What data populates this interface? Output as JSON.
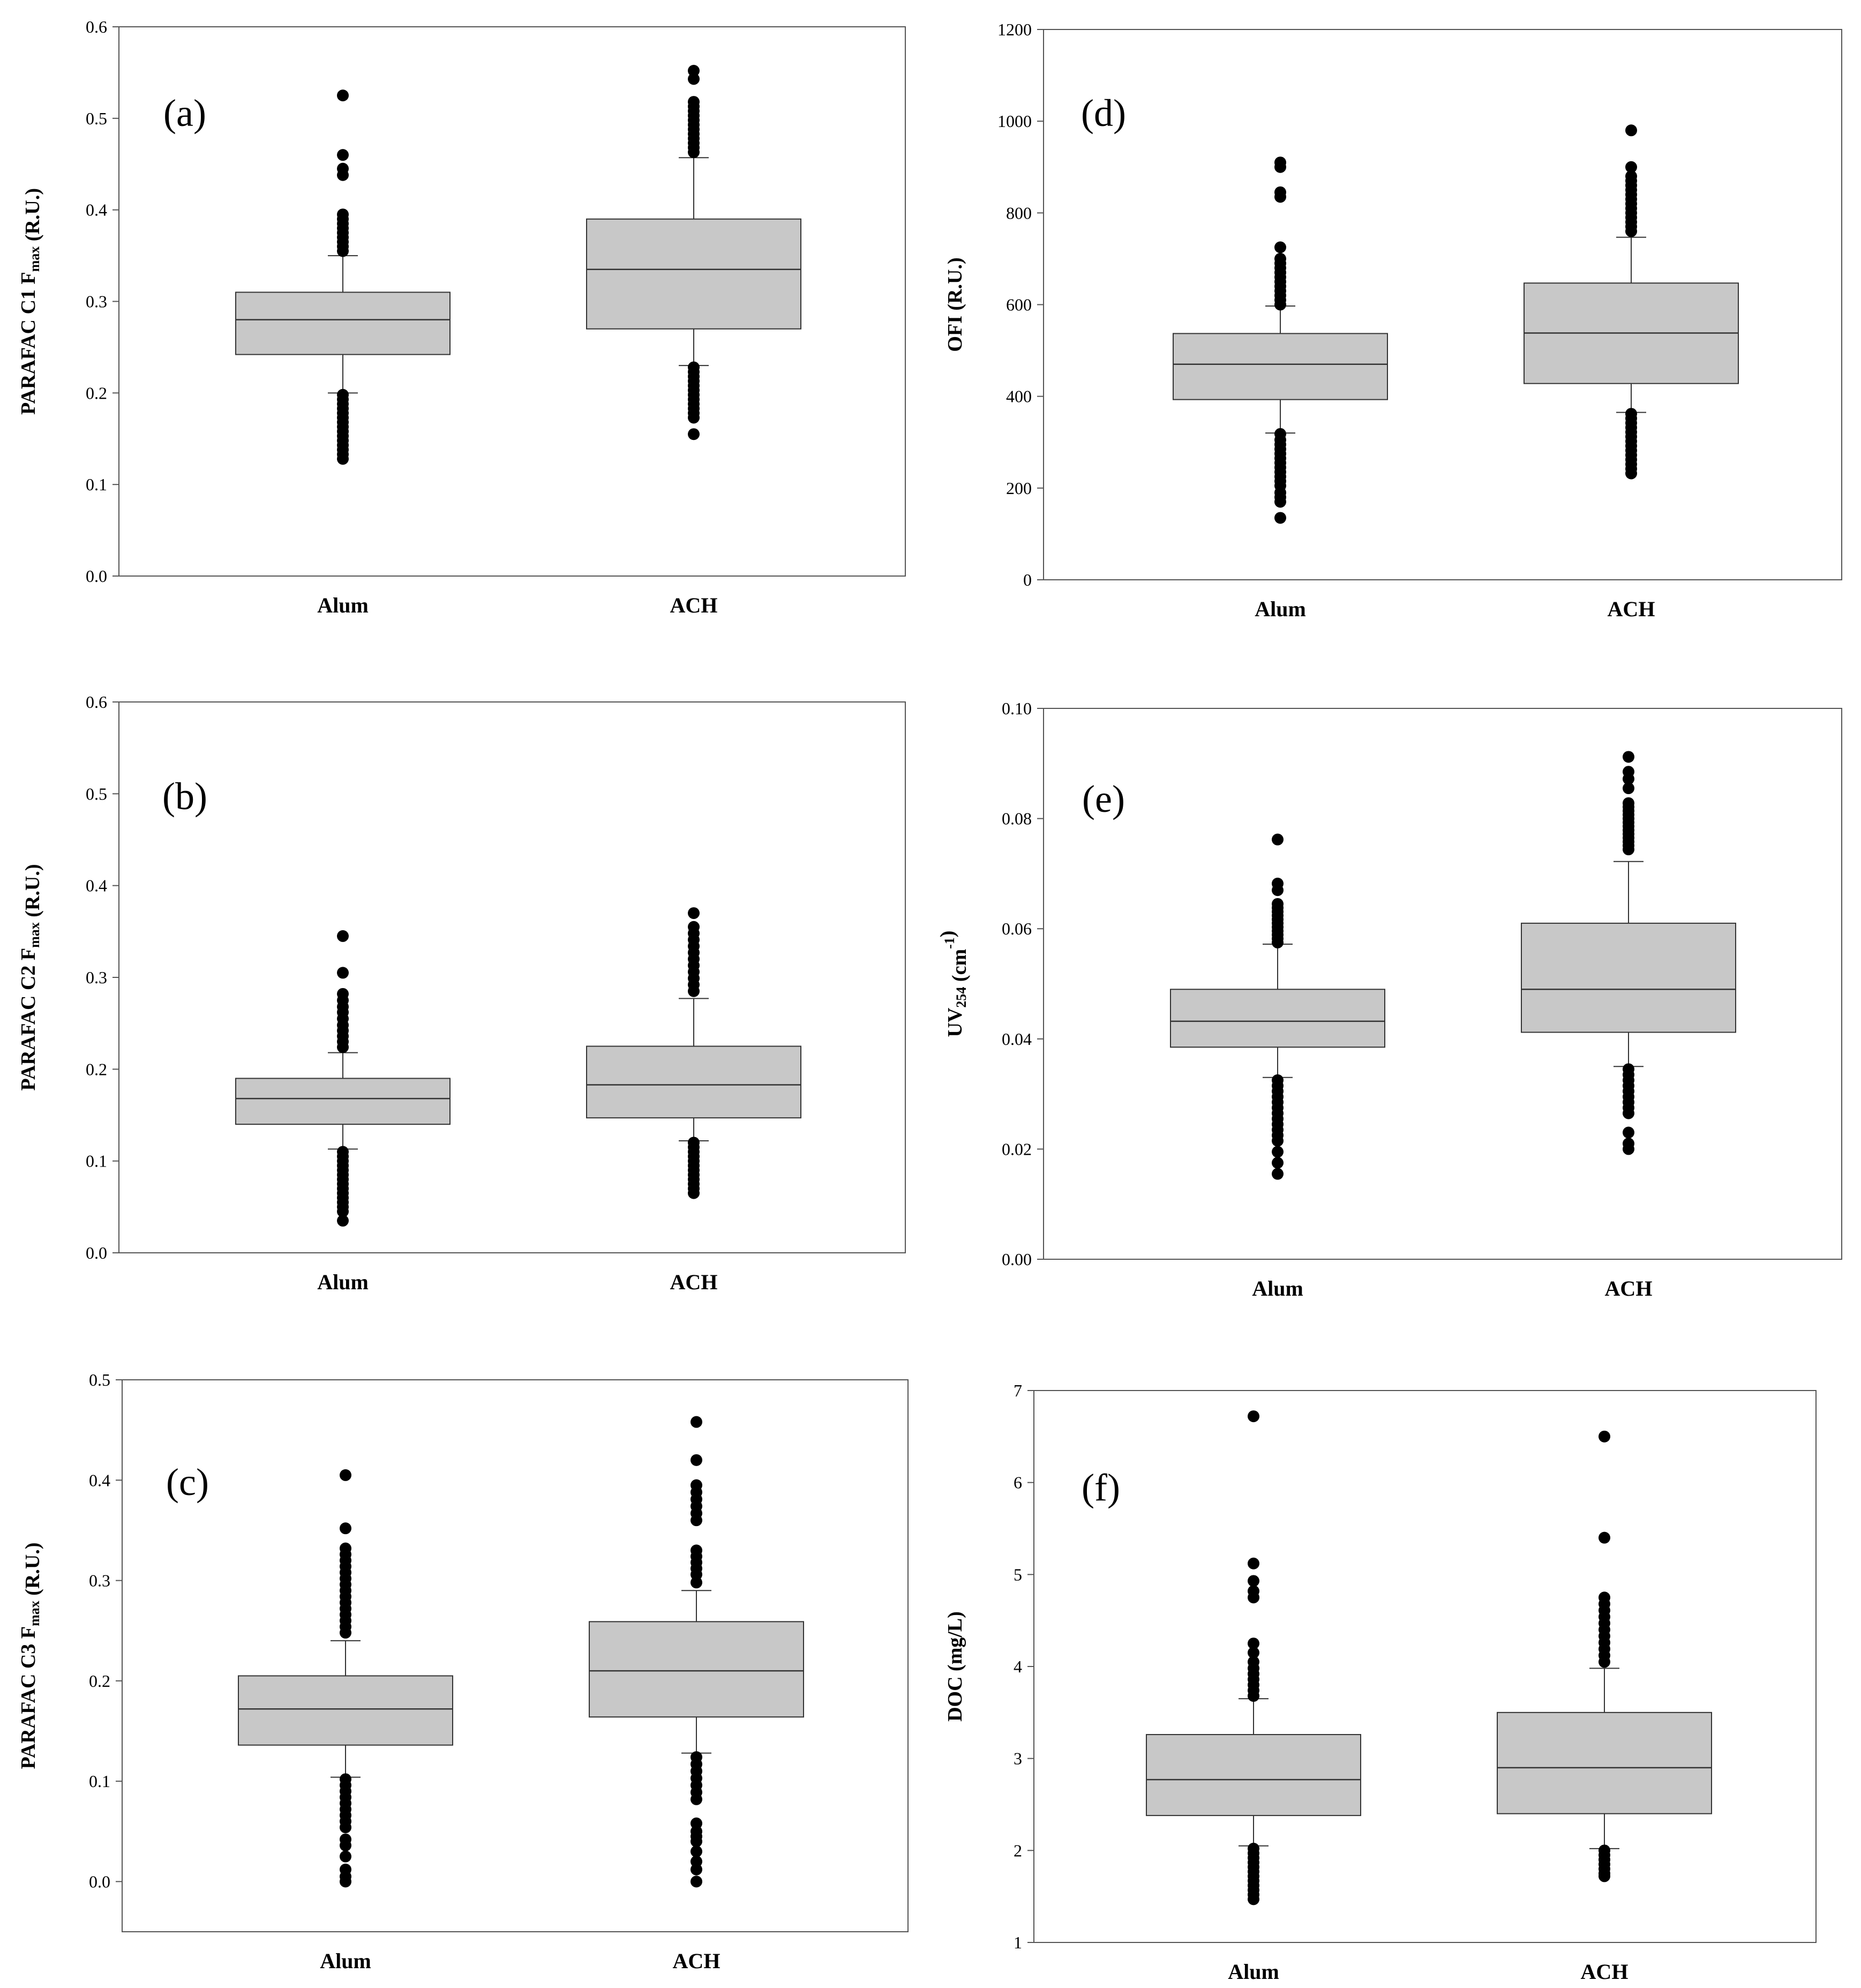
{
  "chart_data": [
    {
      "type": "box",
      "panel_label": "(a)",
      "ylabel": {
        "pre": "PARAFAC C1 F",
        "sub": "max",
        "sup": "",
        "post": " (R.U.)"
      },
      "ylim": [
        0,
        0.6
      ],
      "yticks": [
        "0.0",
        "0.1",
        "0.2",
        "0.3",
        "0.4",
        "0.5",
        "0.6"
      ],
      "categories": [
        "Alum",
        "ACH"
      ],
      "boxes": [
        {
          "category": "Alum",
          "whisker_low": 0.2,
          "q1": 0.242,
          "median": 0.28,
          "q3": 0.31,
          "whisker_high": 0.35,
          "outliers": [
            0.525,
            0.46,
            0.445,
            0.438,
            0.395,
            0.39,
            0.385,
            0.38,
            0.375,
            0.37,
            0.365,
            0.36,
            0.355,
            0.198,
            0.193,
            0.188,
            0.183,
            0.178,
            0.173,
            0.168,
            0.163,
            0.158,
            0.153,
            0.148,
            0.143,
            0.138,
            0.133,
            0.128
          ]
        },
        {
          "category": "ACH",
          "whisker_low": 0.23,
          "q1": 0.27,
          "median": 0.335,
          "q3": 0.39,
          "whisker_high": 0.457,
          "outliers": [
            0.552,
            0.543,
            0.518,
            0.513,
            0.508,
            0.503,
            0.498,
            0.493,
            0.488,
            0.483,
            0.478,
            0.473,
            0.468,
            0.463,
            0.228,
            0.223,
            0.218,
            0.213,
            0.208,
            0.203,
            0.198,
            0.193,
            0.188,
            0.183,
            0.178,
            0.173,
            0.155
          ]
        }
      ]
    },
    {
      "type": "box",
      "panel_label": "(b)",
      "ylabel": {
        "pre": "PARAFAC C2 F",
        "sub": "max",
        "sup": "",
        "post": " (R.U.)"
      },
      "ylim": [
        0,
        0.6
      ],
      "yticks": [
        "0.0",
        "0.1",
        "0.2",
        "0.3",
        "0.4",
        "0.5",
        "0.6"
      ],
      "categories": [
        "Alum",
        "ACH"
      ],
      "boxes": [
        {
          "category": "Alum",
          "whisker_low": 0.113,
          "q1": 0.14,
          "median": 0.168,
          "q3": 0.19,
          "whisker_high": 0.218,
          "outliers": [
            0.345,
            0.305,
            0.282,
            0.275,
            0.268,
            0.262,
            0.255,
            0.248,
            0.242,
            0.236,
            0.23,
            0.224,
            0.11,
            0.105,
            0.1,
            0.095,
            0.09,
            0.085,
            0.08,
            0.075,
            0.07,
            0.065,
            0.06,
            0.055,
            0.05,
            0.045,
            0.035
          ]
        },
        {
          "category": "ACH",
          "whisker_low": 0.122,
          "q1": 0.147,
          "median": 0.183,
          "q3": 0.225,
          "whisker_high": 0.277,
          "outliers": [
            0.37,
            0.355,
            0.348,
            0.341,
            0.334,
            0.327,
            0.32,
            0.313,
            0.306,
            0.299,
            0.292,
            0.285,
            0.12,
            0.115,
            0.11,
            0.105,
            0.1,
            0.095,
            0.09,
            0.085,
            0.08,
            0.075,
            0.07,
            0.065
          ]
        }
      ]
    },
    {
      "type": "box",
      "panel_label": "(c)",
      "ylabel": {
        "pre": "PARAFAC C3 F",
        "sub": "max",
        "sup": "",
        "post": " (R.U.)"
      },
      "ylim": [
        -0.05,
        0.5
      ],
      "yticks": [
        "0.0",
        "0.1",
        "0.2",
        "0.3",
        "0.4",
        "0.5"
      ],
      "categories": [
        "Alum",
        "ACH"
      ],
      "boxes": [
        {
          "category": "Alum",
          "whisker_low": 0.104,
          "q1": 0.136,
          "median": 0.172,
          "q3": 0.205,
          "whisker_high": 0.24,
          "outliers": [
            0.405,
            0.352,
            0.332,
            0.326,
            0.32,
            0.314,
            0.308,
            0.302,
            0.296,
            0.29,
            0.284,
            0.278,
            0.272,
            0.266,
            0.26,
            0.254,
            0.248,
            0.102,
            0.096,
            0.09,
            0.084,
            0.078,
            0.072,
            0.066,
            0.06,
            0.054,
            0.042,
            0.036,
            0.025,
            0.012,
            0.005,
            0.0
          ]
        },
        {
          "category": "ACH",
          "whisker_low": 0.128,
          "q1": 0.164,
          "median": 0.21,
          "q3": 0.259,
          "whisker_high": 0.29,
          "outliers": [
            0.458,
            0.42,
            0.395,
            0.388,
            0.381,
            0.374,
            0.367,
            0.36,
            0.33,
            0.324,
            0.318,
            0.312,
            0.306,
            0.298,
            0.124,
            0.117,
            0.11,
            0.103,
            0.096,
            0.089,
            0.082,
            0.058,
            0.05,
            0.045,
            0.04,
            0.03,
            0.02,
            0.012,
            0.0
          ]
        }
      ]
    },
    {
      "type": "box",
      "panel_label": "(d)",
      "ylabel": {
        "pre": "OFI (R.U.)",
        "sub": "",
        "sup": "",
        "post": ""
      },
      "ylim": [
        0,
        1200
      ],
      "yticks": [
        "0",
        "200",
        "400",
        "600",
        "800",
        "1000",
        "1200"
      ],
      "categories": [
        "Alum",
        "ACH"
      ],
      "boxes": [
        {
          "category": "Alum",
          "whisker_low": 320,
          "q1": 393,
          "median": 470,
          "q3": 537,
          "whisker_high": 597,
          "outliers": [
            910,
            900,
            845,
            835,
            725,
            700,
            690,
            680,
            670,
            660,
            650,
            640,
            630,
            620,
            610,
            600,
            318,
            305,
            295,
            285,
            275,
            265,
            255,
            245,
            235,
            225,
            215,
            205,
            190,
            180,
            170,
            135
          ]
        },
        {
          "category": "ACH",
          "whisker_low": 365,
          "q1": 428,
          "median": 538,
          "q3": 647,
          "whisker_high": 747,
          "outliers": [
            980,
            900,
            880,
            870,
            860,
            850,
            840,
            830,
            820,
            810,
            800,
            790,
            780,
            770,
            760,
            362,
            352,
            342,
            332,
            322,
            312,
            302,
            292,
            282,
            272,
            262,
            252,
            242,
            232
          ]
        }
      ]
    },
    {
      "type": "box",
      "panel_label": "(e)",
      "ylabel": {
        "pre": "UV",
        "sub": "254",
        "sup": "-1",
        "post": " (cm",
        "close": ")"
      },
      "ylim": [
        0,
        0.1
      ],
      "yticks": [
        "0.00",
        "0.02",
        "0.04",
        "0.06",
        "0.08",
        "0.10"
      ],
      "categories": [
        "Alum",
        "ACH"
      ],
      "boxes": [
        {
          "category": "Alum",
          "whisker_low": 0.033,
          "q1": 0.0385,
          "median": 0.0432,
          "q3": 0.049,
          "whisker_high": 0.0572,
          "outliers": [
            0.0762,
            0.0682,
            0.067,
            0.0645,
            0.0638,
            0.0631,
            0.0624,
            0.0617,
            0.061,
            0.0603,
            0.0596,
            0.0589,
            0.0582,
            0.0575,
            0.0325,
            0.0315,
            0.0305,
            0.0295,
            0.0285,
            0.0275,
            0.0265,
            0.0255,
            0.0245,
            0.0235,
            0.0225,
            0.0215,
            0.0195,
            0.0175,
            0.0155
          ]
        },
        {
          "category": "ACH",
          "whisker_low": 0.035,
          "q1": 0.0412,
          "median": 0.049,
          "q3": 0.061,
          "whisker_high": 0.0722,
          "outliers": [
            0.0912,
            0.0885,
            0.0872,
            0.0855,
            0.0828,
            0.0821,
            0.0814,
            0.0807,
            0.08,
            0.0793,
            0.0786,
            0.0779,
            0.0772,
            0.0765,
            0.0758,
            0.0751,
            0.0744,
            0.0345,
            0.0335,
            0.0325,
            0.0315,
            0.0305,
            0.0295,
            0.0285,
            0.0275,
            0.0265,
            0.023,
            0.021,
            0.02
          ]
        }
      ]
    },
    {
      "type": "box",
      "panel_label": "(f)",
      "ylabel": {
        "pre": "DOC (mg/L)",
        "sub": "",
        "sup": "",
        "post": ""
      },
      "ylim": [
        1,
        7
      ],
      "yticks": [
        "1",
        "2",
        "3",
        "4",
        "5",
        "6",
        "7"
      ],
      "categories": [
        "Alum",
        "ACH"
      ],
      "boxes": [
        {
          "category": "Alum",
          "whisker_low": 2.05,
          "q1": 2.38,
          "median": 2.77,
          "q3": 3.26,
          "whisker_high": 3.65,
          "outliers": [
            6.72,
            5.12,
            4.93,
            4.82,
            4.75,
            4.25,
            4.15,
            4.05,
            3.98,
            3.92,
            3.86,
            3.8,
            3.74,
            3.68,
            2.02,
            1.97,
            1.92,
            1.87,
            1.82,
            1.77,
            1.72,
            1.67,
            1.62,
            1.57,
            1.52,
            1.47
          ]
        },
        {
          "category": "ACH",
          "whisker_low": 2.02,
          "q1": 2.4,
          "median": 2.9,
          "q3": 3.5,
          "whisker_high": 3.98,
          "outliers": [
            6.5,
            5.4,
            4.75,
            4.68,
            4.61,
            4.54,
            4.47,
            4.4,
            4.33,
            4.26,
            4.19,
            4.12,
            4.05,
            2.0,
            1.95,
            1.9,
            1.85,
            1.8,
            1.75,
            1.72
          ]
        }
      ]
    }
  ]
}
